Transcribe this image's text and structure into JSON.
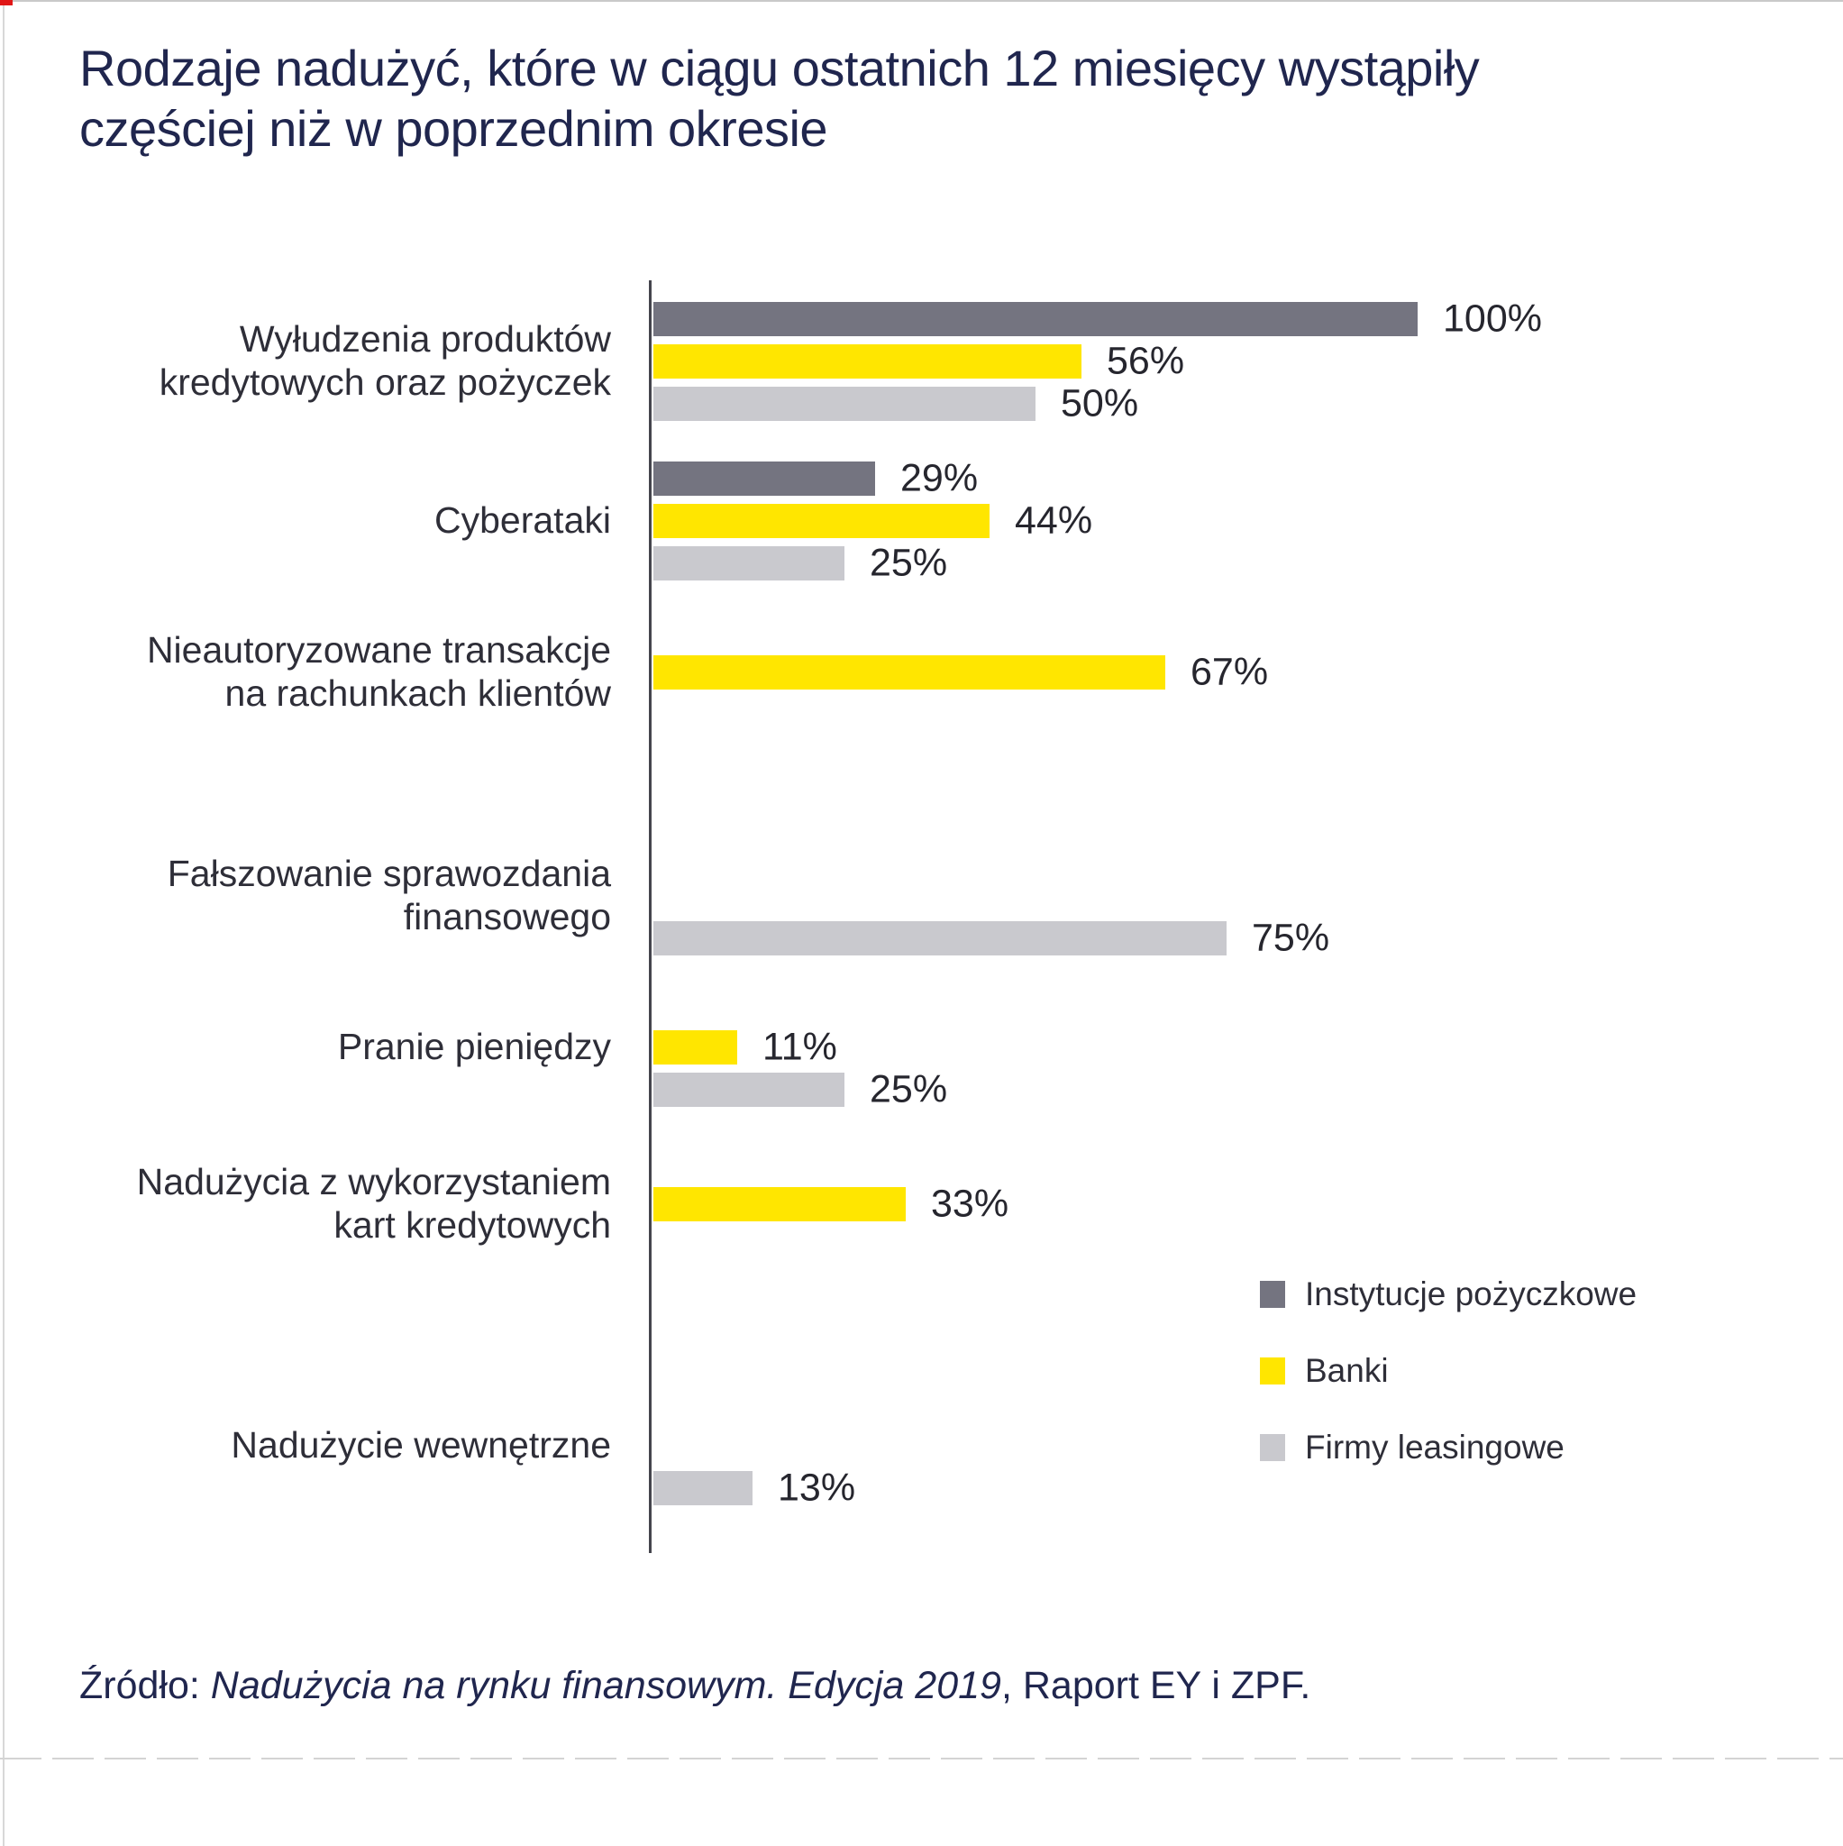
{
  "page": {
    "title_lines": [
      "Rodzaje nadużyć, które w ciągu ostatnich 12 miesięcy wystąpiły",
      "częściej niż w poprzednim okresie"
    ],
    "source_prefix": "Źródło: ",
    "source_italic": "Nadużycia na rynku finansowym. Edycja 2019",
    "source_suffix": ", Raport EY i ZPF."
  },
  "colors": {
    "title_text": "#20264e",
    "label_text": "#2e2e38",
    "axis": "#45454d",
    "series_dark_gray": "#747480",
    "series_yellow": "#ffe600",
    "series_light_gray": "#c9c9ce",
    "background": "#ffffff",
    "corner_mark": "#e01616"
  },
  "chart_data": {
    "type": "bar",
    "orientation": "horizontal",
    "unit": "%",
    "xlim": [
      0,
      100
    ],
    "grid": false,
    "legend_position": "right-middle",
    "title": "Rodzaje nadużyć, które w ciągu ostatnich 12 miesięcy wystąpiły częściej niż w poprzednim okresie",
    "categories": [
      "Wyłudzenia produktów\nkredytowych oraz pożyczek",
      "Cyberataki",
      "Nieautoryzowane transakcje\nna rachunkach klientów",
      "Fałszowanie sprawozdania\nfinansowego",
      "Pranie pieniędzy",
      "Nadużycia z wykorzystaniem\nkart kredytowych",
      "Nadużycie wewnętrzne"
    ],
    "series": [
      {
        "name": "Instytucje pożyczkowe",
        "color": "#747480",
        "values": [
          100,
          29,
          null,
          null,
          null,
          null,
          null
        ]
      },
      {
        "name": "Banki",
        "color": "#ffe600",
        "values": [
          56,
          44,
          67,
          null,
          11,
          33,
          null
        ]
      },
      {
        "name": "Firmy leasingowe",
        "color": "#c9c9ce",
        "values": [
          50,
          25,
          null,
          75,
          25,
          null,
          13
        ]
      }
    ]
  }
}
